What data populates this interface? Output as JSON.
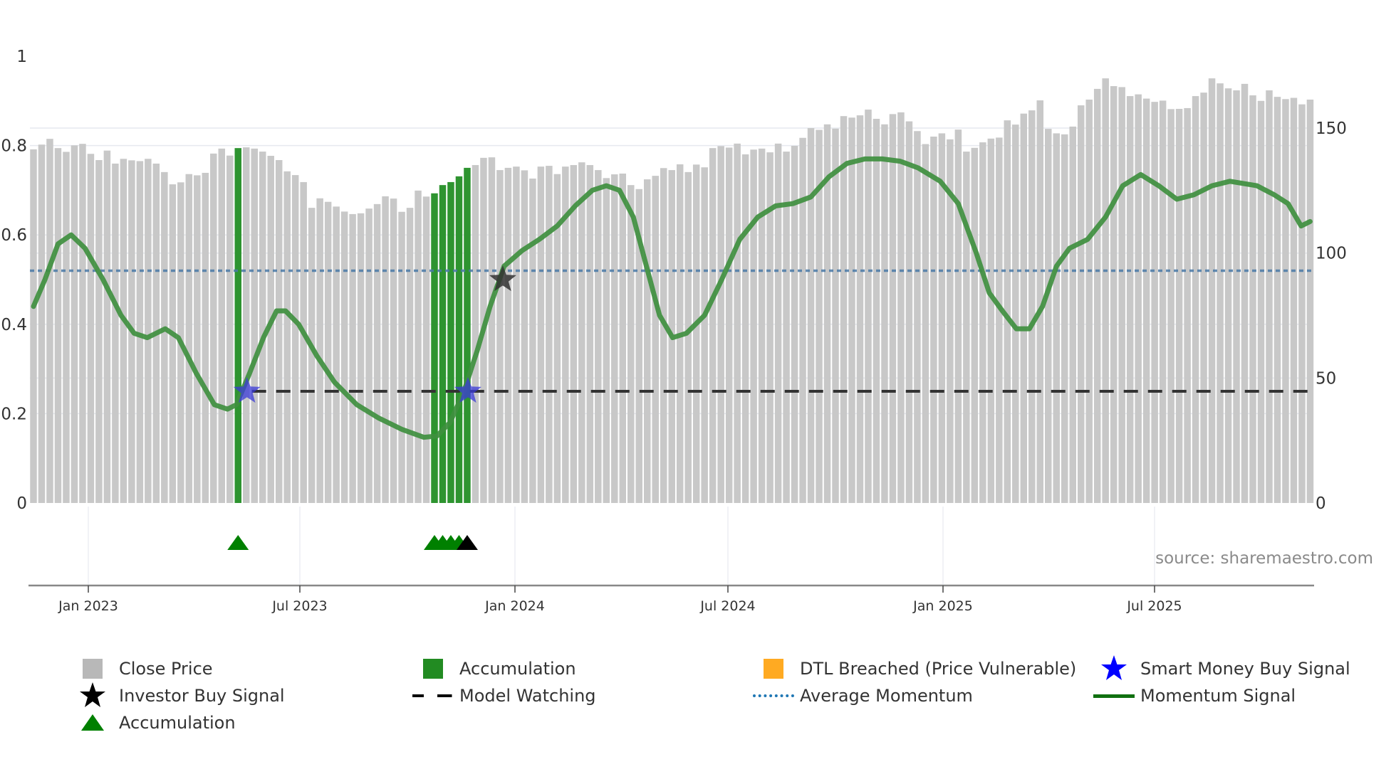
{
  "chart_data": {
    "type": "bar",
    "title": "",
    "xlabel": "",
    "ylabel_left": "",
    "ylabel_right": "",
    "left_axis": {
      "ticks": [
        "0",
        "0.2",
        "0.4",
        "0.6",
        "0.8",
        "1"
      ],
      "range": [
        0,
        1
      ]
    },
    "right_axis": {
      "ticks": [
        "0",
        "50",
        "100",
        "150"
      ],
      "range": [
        0,
        178
      ]
    },
    "x_ticks": [
      "Jan 2023",
      "Jul 2023",
      "Jan 2024",
      "Jul 2024",
      "Jan 2025",
      "Jul 2025"
    ],
    "close_price": [
      141.5,
      143.4,
      145.7,
      142.0,
      140.5,
      143.1,
      143.7,
      139.7,
      137.2,
      141.0,
      135.8,
      137.7,
      137.1,
      136.8,
      137.7,
      135.8,
      132.4,
      127.5,
      128.3,
      131.6,
      131.1,
      132.1,
      139.8,
      141.8,
      139.0,
      142.0,
      142.3,
      141.8,
      140.6,
      138.9,
      137.2,
      132.7,
      131.2,
      128.4,
      118.1,
      121.9,
      120.5,
      118.6,
      116.6,
      115.6,
      115.9,
      117.8,
      119.6,
      122.7,
      121.8,
      116.5,
      118.1,
      125.0,
      122.6,
      123.9,
      127.2,
      128.4,
      130.7,
      134.1,
      135.2,
      138.1,
      138.3,
      133.2,
      134.1,
      134.6,
      133.1,
      129.8,
      134.6,
      134.9,
      131.6,
      134.6,
      135.2,
      136.3,
      135.2,
      133.2,
      130.0,
      131.5,
      131.8,
      127.2,
      125.6,
      129.5,
      130.9,
      134.0,
      133.2,
      135.5,
      132.4,
      135.4,
      134.3,
      142.0,
      142.8,
      142.2,
      143.8,
      139.5,
      141.4,
      141.8,
      140.3,
      143.8,
      140.6,
      142.9,
      146.1,
      150.0,
      149.3,
      151.5,
      149.8,
      154.8,
      154.2,
      155.1,
      157.4,
      153.7,
      151.5,
      155.6,
      156.3,
      152.7,
      148.8,
      143.6,
      146.6,
      147.9,
      145.5,
      149.4,
      140.6,
      142.1,
      144.3,
      145.8,
      146.2,
      153.1,
      151.4,
      155.8,
      157.1,
      161.1,
      149.7,
      147.9,
      147.5,
      150.6,
      159.1,
      161.4,
      165.7,
      169.9,
      166.8,
      166.4,
      162.8,
      163.5,
      161.8,
      160.5,
      161.0,
      157.6,
      157.7,
      158.0,
      162.8,
      164.2,
      169.9,
      167.9,
      165.9,
      165.1,
      167.7,
      163.1,
      160.9,
      165.1,
      162.5,
      161.6,
      162.1,
      159.5,
      161.4
    ],
    "accumulation_bar_indices": [
      25,
      49,
      50,
      51,
      52,
      53
    ],
    "momentum_signal": [
      [
        0,
        0.44
      ],
      [
        1.4,
        0.5
      ],
      [
        3.0,
        0.58
      ],
      [
        4.6,
        0.6
      ],
      [
        6.3,
        0.57
      ],
      [
        8.5,
        0.5
      ],
      [
        10.7,
        0.42
      ],
      [
        12.3,
        0.38
      ],
      [
        13.9,
        0.37
      ],
      [
        16.1,
        0.39
      ],
      [
        17.7,
        0.37
      ],
      [
        19.9,
        0.29
      ],
      [
        22.1,
        0.22
      ],
      [
        23.7,
        0.21
      ],
      [
        24.8,
        0.22
      ],
      [
        26.4,
        0.29
      ],
      [
        28.1,
        0.37
      ],
      [
        29.7,
        0.43
      ],
      [
        30.8,
        0.43
      ],
      [
        32.4,
        0.4
      ],
      [
        34.6,
        0.33
      ],
      [
        36.8,
        0.27
      ],
      [
        39.5,
        0.22
      ],
      [
        42.2,
        0.19
      ],
      [
        45.0,
        0.165
      ],
      [
        47.7,
        0.147
      ],
      [
        49.3,
        0.15
      ],
      [
        50.9,
        0.18
      ],
      [
        52.6,
        0.25
      ],
      [
        54.2,
        0.34
      ],
      [
        55.8,
        0.44
      ],
      [
        57.5,
        0.53
      ],
      [
        59.7,
        0.565
      ],
      [
        61.8,
        0.59
      ],
      [
        64.0,
        0.62
      ],
      [
        66.2,
        0.665
      ],
      [
        68.3,
        0.7
      ],
      [
        70.0,
        0.71
      ],
      [
        71.6,
        0.7
      ],
      [
        73.3,
        0.64
      ],
      [
        74.9,
        0.53
      ],
      [
        76.5,
        0.42
      ],
      [
        78.1,
        0.37
      ],
      [
        79.8,
        0.38
      ],
      [
        82.0,
        0.42
      ],
      [
        84.1,
        0.5
      ],
      [
        86.3,
        0.59
      ],
      [
        88.5,
        0.64
      ],
      [
        90.7,
        0.665
      ],
      [
        92.8,
        0.67
      ],
      [
        95.0,
        0.685
      ],
      [
        97.2,
        0.73
      ],
      [
        99.4,
        0.76
      ],
      [
        101.6,
        0.77
      ],
      [
        103.7,
        0.77
      ],
      [
        105.9,
        0.765
      ],
      [
        108.1,
        0.75
      ],
      [
        110.8,
        0.72
      ],
      [
        113.0,
        0.67
      ],
      [
        115.2,
        0.56
      ],
      [
        116.8,
        0.47
      ],
      [
        118.4,
        0.43
      ],
      [
        120.1,
        0.39
      ],
      [
        121.7,
        0.39
      ],
      [
        123.3,
        0.44
      ],
      [
        125.0,
        0.53
      ],
      [
        126.6,
        0.57
      ],
      [
        128.8,
        0.59
      ],
      [
        131.0,
        0.64
      ],
      [
        133.1,
        0.71
      ],
      [
        135.3,
        0.735
      ],
      [
        137.5,
        0.71
      ],
      [
        139.7,
        0.68
      ],
      [
        141.8,
        0.69
      ],
      [
        144.0,
        0.71
      ],
      [
        146.2,
        0.72
      ],
      [
        149.5,
        0.71
      ],
      [
        151.6,
        0.69
      ],
      [
        153.3,
        0.67
      ],
      [
        154.9,
        0.62
      ],
      [
        156.0,
        0.63
      ]
    ],
    "average_momentum": 0.52,
    "model_watching": {
      "value": 0.25,
      "start_index": 26,
      "end_index": 156
    },
    "smart_money_buy_signals": [
      {
        "index": 26,
        "value": 0.25
      },
      {
        "index": 53,
        "value": 0.25
      }
    ],
    "investor_buy_signals": [
      {
        "index": 57,
        "value": 0.5
      }
    ],
    "accumulation_markers": [
      {
        "index": 25,
        "color": "green"
      },
      {
        "index": 49,
        "color": "green"
      },
      {
        "index": 50,
        "color": "green"
      },
      {
        "index": 51,
        "color": "green"
      },
      {
        "index": 52,
        "color": "green"
      },
      {
        "index": 53,
        "color": "black"
      }
    ],
    "legend_position": "bottom",
    "grid": true
  },
  "colors": {
    "close_price": "#c8c8c8",
    "accumulation": "#228B22",
    "dtl_breached": "#FFA500",
    "smart_money": "#0000FF",
    "investor": "#000000",
    "model_watching": "#000000",
    "average_momentum": "#1f77b4",
    "momentum_signal": "#107010",
    "triangle_accum": "#008000"
  },
  "source_text": "source: sharemaestro.com",
  "legend": [
    {
      "label": "Close Price",
      "symbol": "gray-square"
    },
    {
      "label": "Accumulation",
      "symbol": "green-square"
    },
    {
      "label": "DTL Breached (Price Vulnerable)",
      "symbol": "orange-square"
    },
    {
      "label": "Smart Money Buy Signal",
      "symbol": "blue-star"
    },
    {
      "label": "Investor Buy Signal",
      "symbol": "black-star"
    },
    {
      "label": "Model Watching",
      "symbol": "black-dash"
    },
    {
      "label": "Average Momentum",
      "symbol": "blue-dots"
    },
    {
      "label": "Momentum Signal",
      "symbol": "green-line"
    },
    {
      "label": "Accumulation",
      "symbol": "green-triangle"
    }
  ]
}
